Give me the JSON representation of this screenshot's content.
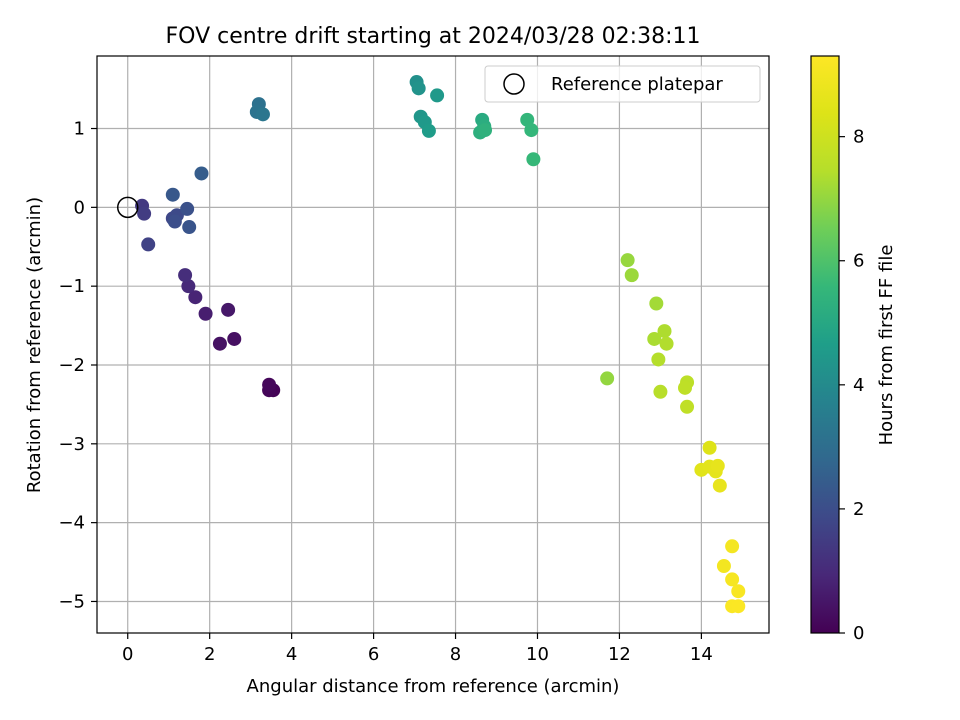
{
  "chart_data": {
    "type": "scatter",
    "title": "FOV centre drift starting at 2024/03/28 02:38:11",
    "xlabel": "Angular distance from reference (arcmin)",
    "ylabel": "Rotation from reference (arcmin)",
    "xlim": [
      -0.75,
      15.65
    ],
    "ylim": [
      -5.4,
      1.92
    ],
    "xticks": [
      0,
      2,
      4,
      6,
      8,
      10,
      12,
      14
    ],
    "yticks": [
      -5,
      -4,
      -3,
      -2,
      -1,
      0,
      1
    ],
    "grid": true,
    "legend": {
      "position": "top-right",
      "entries": [
        "Reference platepar"
      ]
    },
    "reference_point": {
      "x": 0,
      "y": 0
    },
    "colorbar": {
      "label": "Hours from first FF file",
      "colormap": "viridis",
      "range": [
        0,
        9.3
      ],
      "ticks": [
        0,
        2,
        4,
        6,
        8
      ]
    },
    "points": [
      {
        "x": 3.55,
        "y": -2.32,
        "c": 0.05
      },
      {
        "x": 3.45,
        "y": -2.32,
        "c": 0.1
      },
      {
        "x": 3.45,
        "y": -2.25,
        "c": 0.15
      },
      {
        "x": 2.6,
        "y": -1.67,
        "c": 0.35
      },
      {
        "x": 2.25,
        "y": -1.73,
        "c": 0.4
      },
      {
        "x": 2.45,
        "y": -1.3,
        "c": 0.55
      },
      {
        "x": 1.9,
        "y": -1.35,
        "c": 0.7
      },
      {
        "x": 1.65,
        "y": -1.14,
        "c": 0.85
      },
      {
        "x": 1.48,
        "y": -1.0,
        "c": 1.0
      },
      {
        "x": 1.4,
        "y": -0.86,
        "c": 1.1
      },
      {
        "x": 0.35,
        "y": 0.02,
        "c": 1.4
      },
      {
        "x": 0.4,
        "y": -0.08,
        "c": 1.5
      },
      {
        "x": 0.5,
        "y": -0.47,
        "c": 1.65
      },
      {
        "x": 1.1,
        "y": -0.14,
        "c": 1.8
      },
      {
        "x": 1.2,
        "y": -0.1,
        "c": 1.9
      },
      {
        "x": 1.15,
        "y": -0.18,
        "c": 2.0
      },
      {
        "x": 1.45,
        "y": -0.02,
        "c": 2.1
      },
      {
        "x": 1.5,
        "y": -0.25,
        "c": 2.2
      },
      {
        "x": 1.1,
        "y": 0.16,
        "c": 2.3
      },
      {
        "x": 1.8,
        "y": 0.43,
        "c": 2.45
      },
      {
        "x": 3.2,
        "y": 1.31,
        "c": 3.1
      },
      {
        "x": 3.15,
        "y": 1.21,
        "c": 3.2
      },
      {
        "x": 3.3,
        "y": 1.18,
        "c": 3.3
      },
      {
        "x": 7.05,
        "y": 1.59,
        "c": 4.2
      },
      {
        "x": 7.1,
        "y": 1.51,
        "c": 4.3
      },
      {
        "x": 7.55,
        "y": 1.42,
        "c": 4.5
      },
      {
        "x": 7.15,
        "y": 1.15,
        "c": 4.4
      },
      {
        "x": 7.25,
        "y": 1.08,
        "c": 4.5
      },
      {
        "x": 7.35,
        "y": 0.97,
        "c": 4.6
      },
      {
        "x": 8.65,
        "y": 1.11,
        "c": 5.1
      },
      {
        "x": 8.7,
        "y": 1.03,
        "c": 5.2
      },
      {
        "x": 8.6,
        "y": 0.95,
        "c": 5.3
      },
      {
        "x": 8.72,
        "y": 0.98,
        "c": 5.35
      },
      {
        "x": 9.75,
        "y": 1.11,
        "c": 5.5
      },
      {
        "x": 9.85,
        "y": 0.98,
        "c": 5.55
      },
      {
        "x": 9.9,
        "y": 0.61,
        "c": 5.6
      },
      {
        "x": 11.7,
        "y": -2.17,
        "c": 7.0
      },
      {
        "x": 12.2,
        "y": -0.67,
        "c": 7.05
      },
      {
        "x": 12.3,
        "y": -0.86,
        "c": 7.1
      },
      {
        "x": 12.9,
        "y": -1.22,
        "c": 7.2
      },
      {
        "x": 12.85,
        "y": -1.67,
        "c": 7.3
      },
      {
        "x": 13.1,
        "y": -1.57,
        "c": 7.35
      },
      {
        "x": 13.15,
        "y": -1.73,
        "c": 7.4
      },
      {
        "x": 12.95,
        "y": -1.93,
        "c": 7.45
      },
      {
        "x": 13.0,
        "y": -2.34,
        "c": 7.5
      },
      {
        "x": 13.65,
        "y": -2.22,
        "c": 7.6
      },
      {
        "x": 13.6,
        "y": -2.29,
        "c": 7.65
      },
      {
        "x": 13.65,
        "y": -2.53,
        "c": 7.7
      },
      {
        "x": 14.2,
        "y": -3.05,
        "c": 8.4
      },
      {
        "x": 14.0,
        "y": -3.33,
        "c": 8.5
      },
      {
        "x": 14.2,
        "y": -3.29,
        "c": 8.55
      },
      {
        "x": 14.35,
        "y": -3.35,
        "c": 8.6
      },
      {
        "x": 14.4,
        "y": -3.28,
        "c": 8.65
      },
      {
        "x": 14.45,
        "y": -3.53,
        "c": 8.7
      },
      {
        "x": 14.55,
        "y": -4.55,
        "c": 9.0
      },
      {
        "x": 14.75,
        "y": -4.3,
        "c": 9.05
      },
      {
        "x": 14.75,
        "y": -4.72,
        "c": 9.1
      },
      {
        "x": 14.9,
        "y": -4.87,
        "c": 9.15
      },
      {
        "x": 14.75,
        "y": -5.06,
        "c": 9.2
      },
      {
        "x": 14.9,
        "y": -5.06,
        "c": 9.25
      }
    ]
  }
}
